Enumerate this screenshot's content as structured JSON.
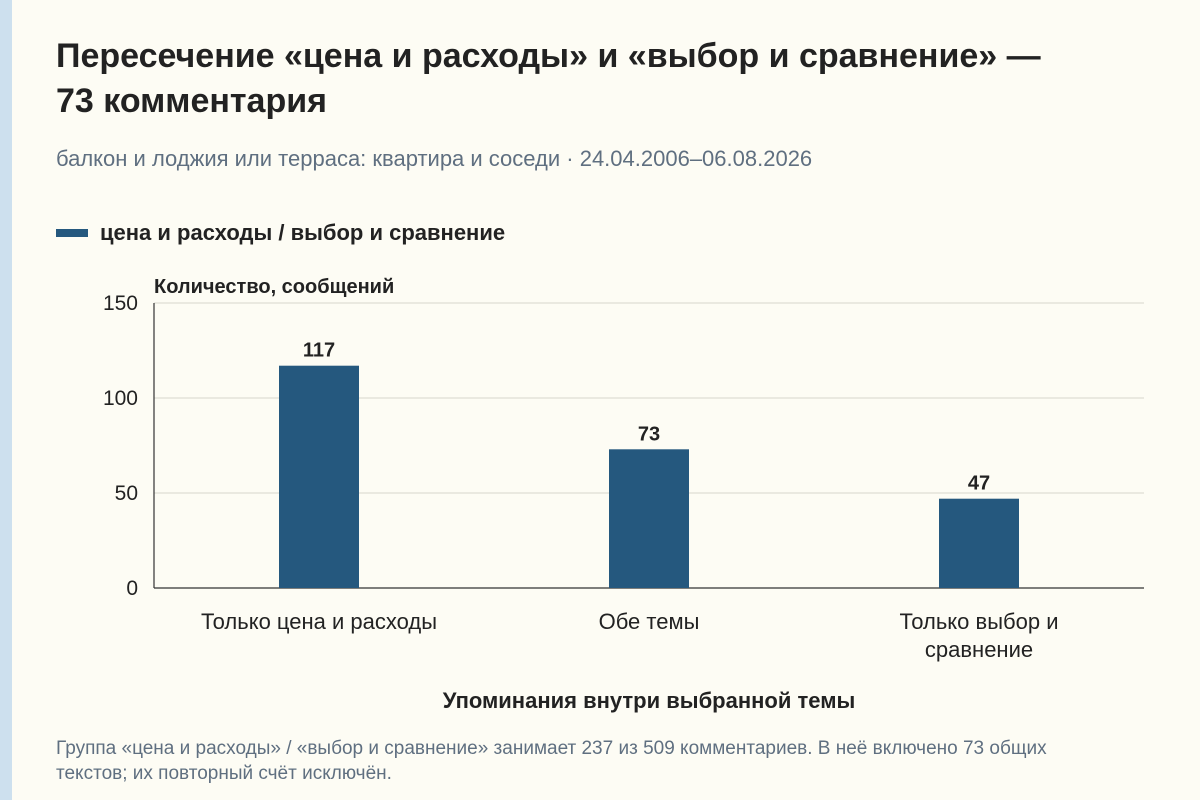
{
  "title": "Пересечение «цена и расходы» и «выбор и сравнение» — 73 комментария",
  "subtitle": "балкон и лоджия или терраса: квартира и соседи · 24.04.2006–06.08.2026",
  "footnote": "Группа «цена и расходы» / «выбор и сравнение» занимает 237 из 509 комментариев. В неё включено 73 общих текстов; их повторный счёт исключён.",
  "colors": {
    "bar": "#25587e",
    "grid": "#d6d6cc",
    "axis": "#333333",
    "text": "#222222",
    "muted": "#5f6f80"
  },
  "chart_data": {
    "type": "bar",
    "categories": [
      "Только цена и расходы",
      "Обе темы",
      "Только выбор и сравнение"
    ],
    "series": [
      {
        "name": "цена и расходы / выбор и сравнение",
        "values": [
          117,
          73,
          47
        ]
      }
    ],
    "ylabel": "Количество, сообщений",
    "xlabel": "Упоминания внутри выбранной темы",
    "ylim": [
      0,
      150
    ],
    "yticks": [
      0,
      50,
      100,
      150
    ],
    "grid": true,
    "legend": "top-left",
    "data_labels": [
      "117",
      "73",
      "47"
    ]
  }
}
